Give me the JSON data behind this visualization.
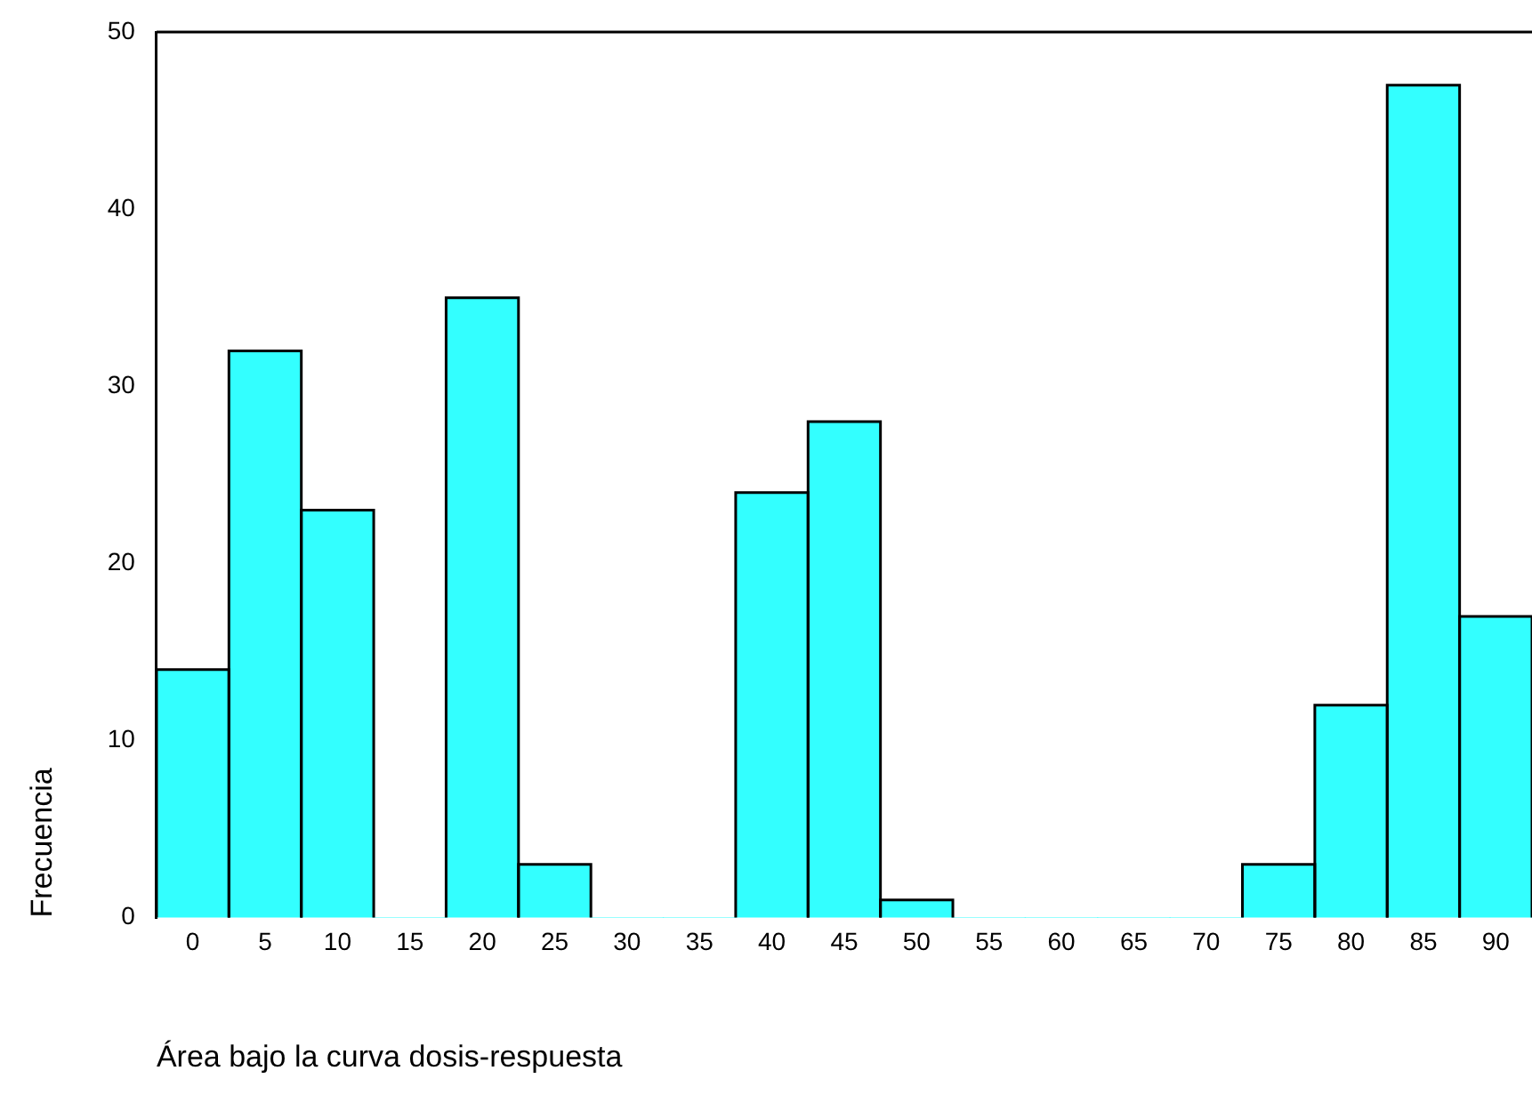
{
  "chart_data": {
    "type": "histogram",
    "xlabel": "Área bajo la curva dosis-respuesta",
    "ylabel": "Frecuencia",
    "bins": [
      -2.5,
      2.5,
      7.5,
      12.5,
      17.5,
      22.5,
      27.5,
      32.5,
      37.5,
      42.5,
      47.5,
      52.5,
      57.5,
      62.5,
      67.5,
      72.5,
      77.5,
      82.5,
      87.5,
      92.5
    ],
    "values": [
      14,
      32,
      23,
      0,
      35,
      3,
      0,
      0,
      24,
      28,
      1,
      0,
      0,
      0,
      0,
      3,
      12,
      47,
      17
    ],
    "color": "#33ffff",
    "xlim": [
      -2.5,
      92.5
    ],
    "xticks": [
      0,
      5,
      10,
      15,
      20,
      25,
      30,
      35,
      40,
      45,
      50,
      55,
      60,
      65,
      70,
      75,
      80,
      85,
      90
    ],
    "ylim": [
      0,
      50
    ],
    "yticks": [
      0,
      10,
      20,
      30,
      40,
      50
    ],
    "grid": false,
    "legend": false
  }
}
